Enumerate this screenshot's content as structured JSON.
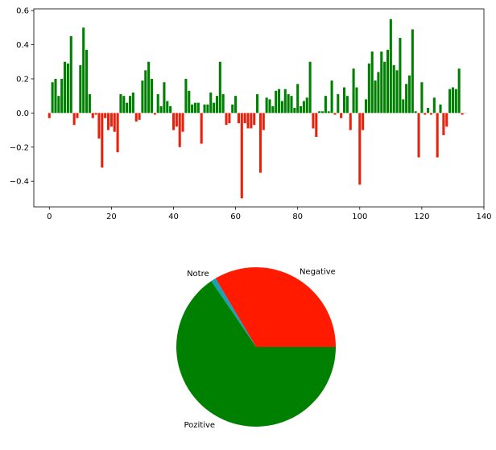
{
  "chart_data": [
    {
      "type": "bar",
      "title": "",
      "xlabel": "",
      "ylabel": "",
      "xlim": [
        -5,
        140
      ],
      "ylim": [
        -0.55,
        0.61
      ],
      "xticks": [
        0,
        20,
        40,
        60,
        80,
        100,
        120,
        140
      ],
      "yticks": [
        -0.4,
        -0.2,
        0.0,
        0.2,
        0.4,
        0.6
      ],
      "ytick_labels": [
        "−0.4",
        "−0.2",
        "0.0",
        "0.2",
        "0.4",
        "0.6"
      ],
      "grid": false,
      "colors": {
        "positive": "#008000",
        "negative": "#e8210c"
      },
      "x": [
        0,
        1,
        2,
        3,
        4,
        5,
        6,
        7,
        8,
        9,
        10,
        11,
        12,
        13,
        14,
        15,
        16,
        17,
        18,
        19,
        20,
        21,
        22,
        23,
        24,
        25,
        26,
        27,
        28,
        29,
        30,
        31,
        32,
        33,
        34,
        35,
        36,
        37,
        38,
        39,
        40,
        41,
        42,
        43,
        44,
        45,
        46,
        47,
        48,
        49,
        50,
        51,
        52,
        53,
        54,
        55,
        56,
        57,
        58,
        59,
        60,
        61,
        62,
        63,
        64,
        65,
        66,
        67,
        68,
        69,
        70,
        71,
        72,
        73,
        74,
        75,
        76,
        77,
        78,
        79,
        80,
        81,
        82,
        83,
        84,
        85,
        86,
        87,
        88,
        89,
        90,
        91,
        92,
        93,
        94,
        95,
        96,
        97,
        98,
        99,
        100,
        101,
        102,
        103,
        104,
        105,
        106,
        107,
        108,
        109,
        110,
        111,
        112,
        113,
        114,
        115,
        116,
        117,
        118,
        119,
        120,
        121,
        122,
        123,
        124,
        125,
        126,
        127,
        128,
        129,
        130,
        131,
        132,
        133,
        134
      ],
      "values": [
        -0.03,
        0.18,
        0.2,
        0.1,
        0.2,
        0.3,
        0.29,
        0.45,
        -0.07,
        -0.03,
        0.28,
        0.5,
        0.37,
        0.11,
        -0.03,
        -0.01,
        -0.15,
        -0.32,
        -0.03,
        -0.1,
        -0.08,
        -0.11,
        -0.23,
        0.11,
        0.1,
        0.06,
        0.1,
        0.12,
        -0.05,
        -0.04,
        0.19,
        0.25,
        0.3,
        0.2,
        -0.01,
        0.11,
        0.04,
        0.18,
        0.07,
        0.04,
        -0.1,
        -0.08,
        -0.2,
        -0.11,
        0.2,
        0.13,
        0.05,
        0.06,
        0.06,
        -0.18,
        0.05,
        0.05,
        0.12,
        0.06,
        0.1,
        0.3,
        0.11,
        -0.07,
        -0.06,
        0.05,
        0.1,
        -0.06,
        -0.5,
        -0.06,
        -0.09,
        -0.09,
        -0.07,
        0.11,
        -0.35,
        -0.1,
        0.09,
        0.08,
        0.04,
        0.13,
        0.14,
        0.07,
        0.14,
        0.11,
        0.1,
        0.03,
        0.17,
        0.04,
        0.07,
        0.09,
        0.3,
        -0.09,
        -0.14,
        0.01,
        0.01,
        0.1,
        0.01,
        0.19,
        -0.01,
        0.11,
        -0.03,
        0.15,
        0.1,
        -0.1,
        0.26,
        0.15,
        -0.42,
        -0.1,
        0.08,
        0.29,
        0.36,
        0.19,
        0.24,
        0.36,
        0.3,
        0.37,
        0.55,
        0.28,
        0.25,
        0.44,
        0.08,
        0.17,
        0.22,
        0.49,
        0.01,
        -0.26,
        0.18,
        -0.01,
        0.03,
        -0.01,
        0.09,
        -0.26,
        0.05,
        -0.13,
        -0.08,
        0.14,
        0.15,
        0.14,
        0.26,
        -0.01,
        0.0
      ]
    },
    {
      "type": "pie",
      "title": "",
      "start_angle_deg": 0,
      "direction": "counterclockwise",
      "slices": [
        {
          "label": "Negative",
          "value": 0.335,
          "color": "#ff1a00"
        },
        {
          "label": "Notre",
          "value": 0.01,
          "color": "#17a2b8"
        },
        {
          "label": "Pozitive",
          "value": 0.655,
          "color": "#008000"
        }
      ]
    }
  ]
}
